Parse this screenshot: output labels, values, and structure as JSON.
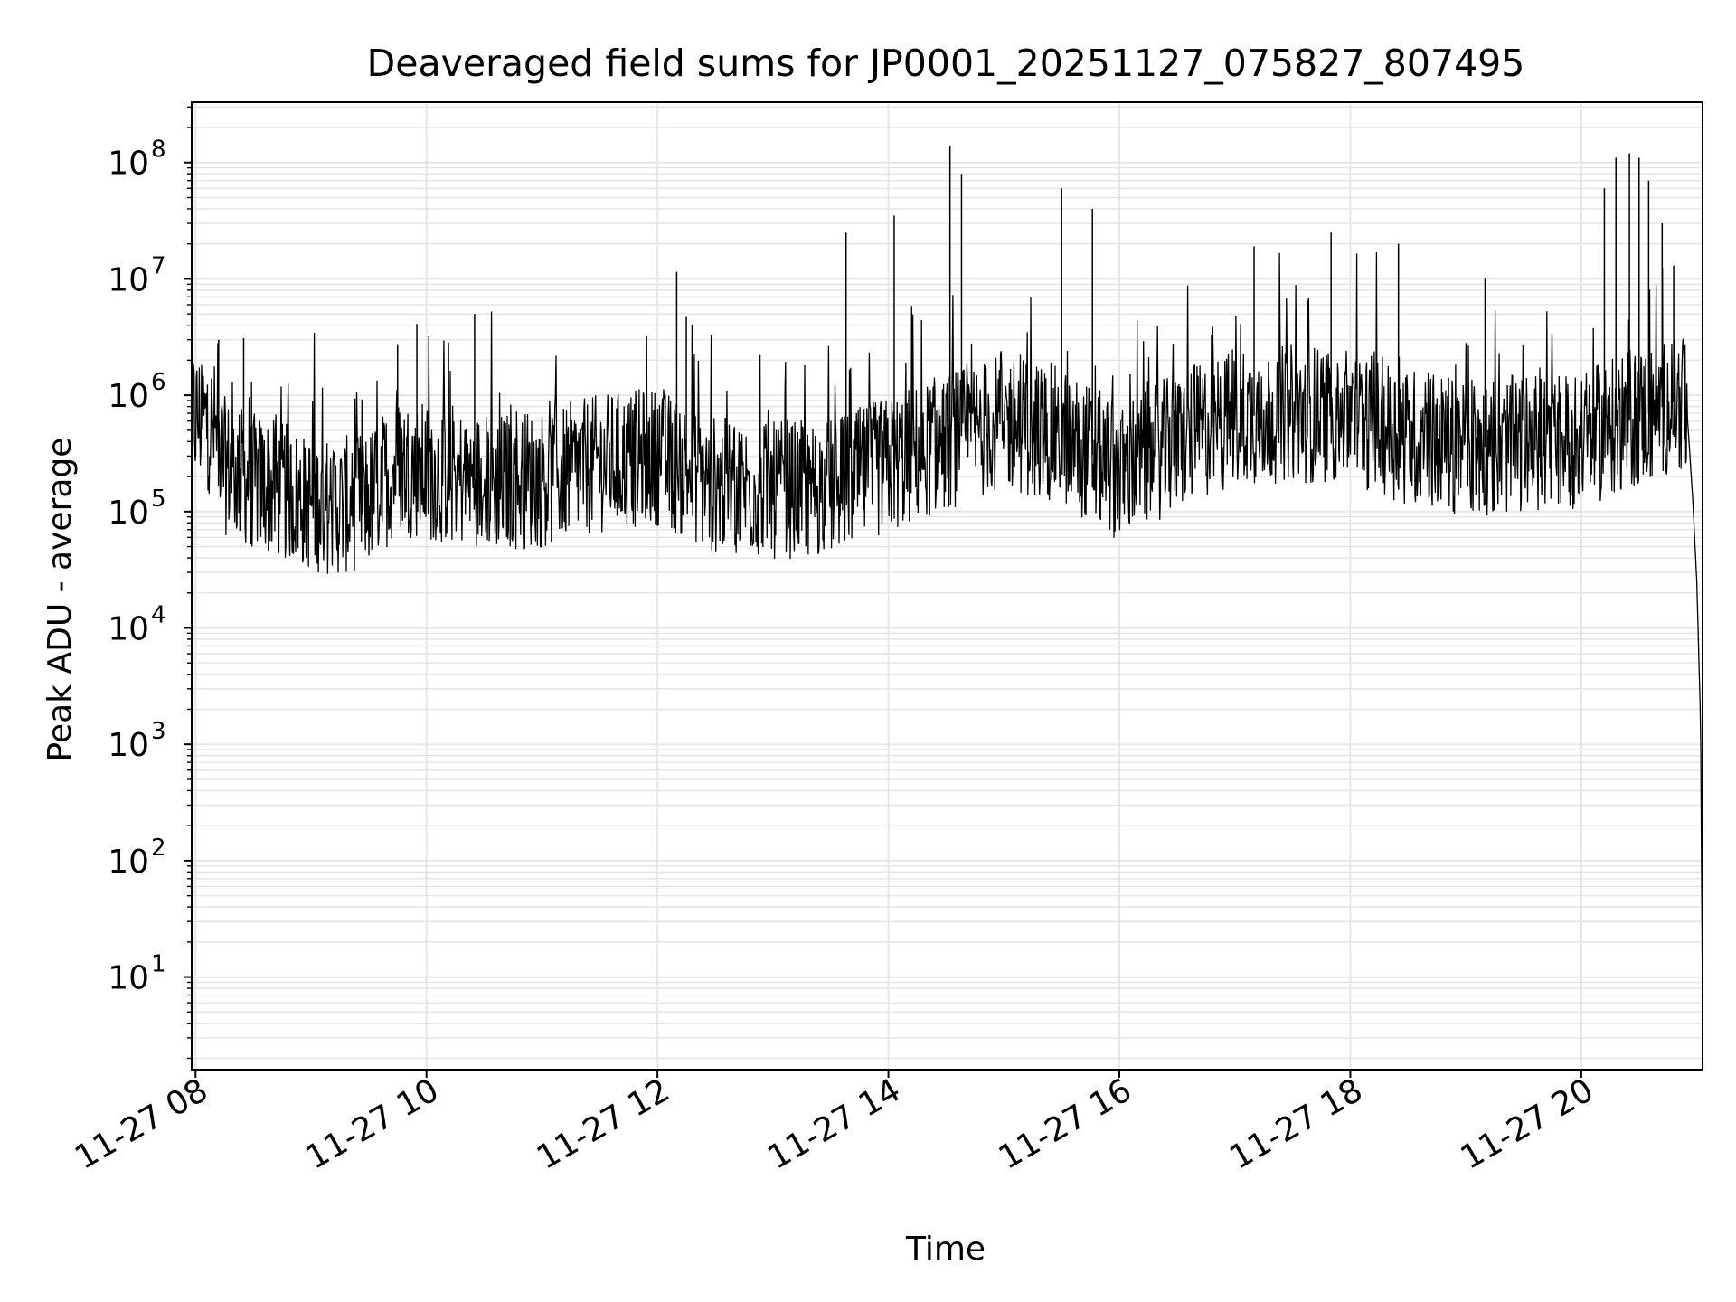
{
  "chart_data": {
    "type": "line",
    "title": "Deaveraged field sums for JP0001_20251127_075827_807495",
    "xlabel": "Time",
    "ylabel": "Peak ADU - average",
    "y_scale": "log",
    "ylim": [
      1.6,
      330000000.0
    ],
    "xlim": [
      "2025-11-27 07:58",
      "2025-11-27 21:03"
    ],
    "grid": true,
    "line_color": "#000000",
    "grid_color": "#e6e6e6",
    "x_ticks": [
      {
        "t": "2025-11-27 08:00",
        "label": "11-27 08"
      },
      {
        "t": "2025-11-27 10:00",
        "label": "11-27 10"
      },
      {
        "t": "2025-11-27 12:00",
        "label": "11-27 12"
      },
      {
        "t": "2025-11-27 14:00",
        "label": "11-27 14"
      },
      {
        "t": "2025-11-27 16:00",
        "label": "11-27 16"
      },
      {
        "t": "2025-11-27 18:00",
        "label": "11-27 18"
      },
      {
        "t": "2025-11-27 20:00",
        "label": "11-27 20"
      }
    ],
    "y_ticks": [
      {
        "value": 10,
        "base": "10",
        "exp": "1"
      },
      {
        "value": 100,
        "base": "10",
        "exp": "2"
      },
      {
        "value": 1000,
        "base": "10",
        "exp": "3"
      },
      {
        "value": 10000,
        "base": "10",
        "exp": "4"
      },
      {
        "value": 100000,
        "base": "10",
        "exp": "5"
      },
      {
        "value": 1000000,
        "base": "10",
        "exp": "6"
      },
      {
        "value": 10000000,
        "base": "10",
        "exp": "7"
      },
      {
        "value": 100000000,
        "base": "10",
        "exp": "8"
      }
    ],
    "series": [
      {
        "x": [
          "2025-11-27 07:58",
          "2025-11-27 08:05",
          "2025-11-27 08:10",
          "2025-11-27 08:15",
          "2025-11-27 08:30",
          "2025-11-27 08:45",
          "2025-11-27 09:00",
          "2025-11-27 09:15",
          "2025-11-27 09:30",
          "2025-11-27 09:45",
          "2025-11-27 10:00",
          "2025-11-27 10:30",
          "2025-11-27 11:00",
          "2025-11-27 11:30",
          "2025-11-27 12:00",
          "2025-11-27 12:30",
          "2025-11-27 13:00",
          "2025-11-27 13:30",
          "2025-11-27 14:00",
          "2025-11-27 14:30",
          "2025-11-27 15:00",
          "2025-11-27 15:30",
          "2025-11-27 16:00",
          "2025-11-27 16:30",
          "2025-11-27 17:00",
          "2025-11-27 17:30",
          "2025-11-27 18:00",
          "2025-11-27 18:30",
          "2025-11-27 19:00",
          "2025-11-27 19:30",
          "2025-11-27 20:00",
          "2025-11-27 20:30",
          "2025-11-27 20:50",
          "2025-11-27 20:55",
          "2025-11-27 20:58",
          "2025-11-27 21:00",
          "2025-11-27 21:02",
          "2025-11-27 21:03"
        ],
        "baseline": [
          650000,
          600000,
          500000,
          250000,
          180000,
          150000,
          120000,
          110000,
          130000,
          250000,
          220000,
          180000,
          190000,
          260000,
          300000,
          170000,
          150000,
          160000,
          250000,
          400000,
          600000,
          450000,
          220000,
          400000,
          650000,
          700000,
          680000,
          450000,
          350000,
          380000,
          420000,
          650000,
          900000,
          700000,
          120000,
          25000,
          1500,
          4
        ],
        "peaks": [
          {
            "x": "2025-11-27 08:12",
            "y": 3000000
          },
          {
            "x": "2025-11-27 08:25",
            "y": 3100000
          },
          {
            "x": "2025-11-27 09:45",
            "y": 2700000
          },
          {
            "x": "2025-11-27 09:55",
            "y": 4100000
          },
          {
            "x": "2025-11-27 10:25",
            "y": 5000000
          },
          {
            "x": "2025-11-27 12:10",
            "y": 11500000
          },
          {
            "x": "2025-11-27 12:15",
            "y": 4700000
          },
          {
            "x": "2025-11-27 13:38",
            "y": 25000000
          },
          {
            "x": "2025-11-27 14:03",
            "y": 35000000
          },
          {
            "x": "2025-11-27 14:32",
            "y": 140000000
          },
          {
            "x": "2025-11-27 14:38",
            "y": 80000000
          },
          {
            "x": "2025-11-27 15:30",
            "y": 60000000
          },
          {
            "x": "2025-11-27 15:46",
            "y": 40000000
          },
          {
            "x": "2025-11-27 17:10",
            "y": 19000000
          },
          {
            "x": "2025-11-27 17:50",
            "y": 25000000
          },
          {
            "x": "2025-11-27 18:25",
            "y": 20000000
          },
          {
            "x": "2025-11-27 19:10",
            "y": 10000000
          },
          {
            "x": "2025-11-27 20:12",
            "y": 60000000
          },
          {
            "x": "2025-11-27 20:18",
            "y": 110000000
          },
          {
            "x": "2025-11-27 20:25",
            "y": 120000000
          },
          {
            "x": "2025-11-27 20:30",
            "y": 110000000
          },
          {
            "x": "2025-11-27 20:35",
            "y": 70000000
          },
          {
            "x": "2025-11-27 20:42",
            "y": 30000000
          },
          {
            "x": "2025-11-27 20:48",
            "y": 13000000
          }
        ]
      }
    ]
  }
}
